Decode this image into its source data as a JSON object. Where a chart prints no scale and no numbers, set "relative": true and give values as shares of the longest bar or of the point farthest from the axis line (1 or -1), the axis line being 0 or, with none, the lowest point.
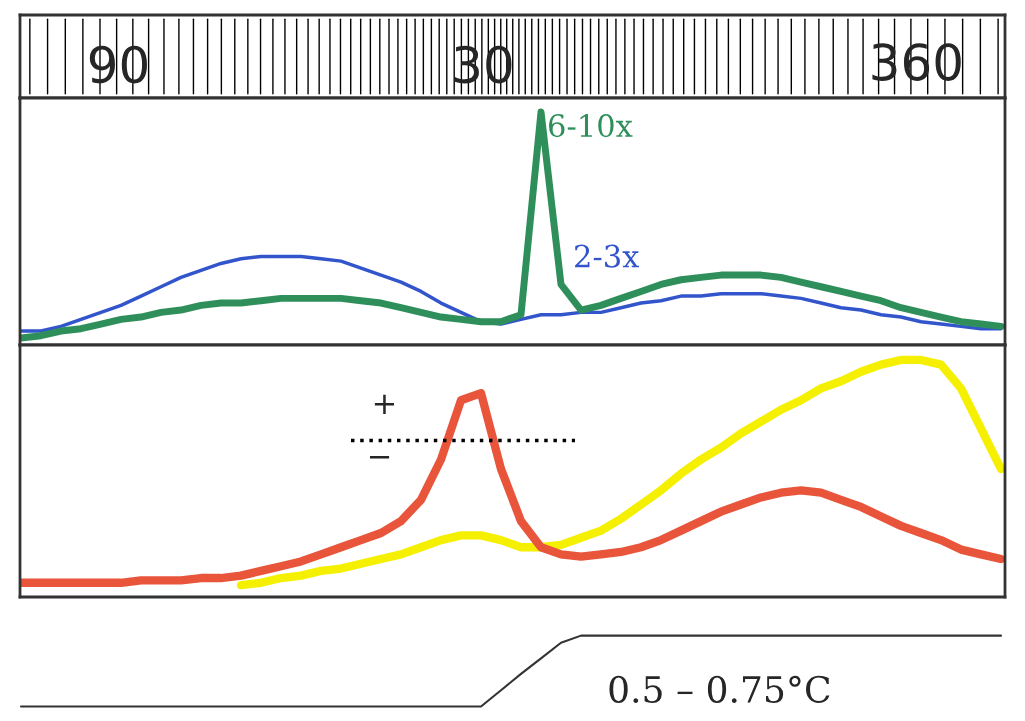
{
  "chart_data": [
    {
      "type": "other",
      "annotations": [
        "90",
        "30",
        "360"
      ]
    },
    {
      "type": "line",
      "relative": true,
      "categories": [
        null,
        null,
        null,
        null,
        null,
        null,
        null,
        null,
        null,
        null,
        null,
        null,
        null,
        null,
        null,
        null,
        null,
        null,
        null,
        null,
        null,
        null,
        null,
        null,
        null,
        null,
        null,
        null,
        null,
        null,
        null,
        null,
        null,
        null,
        null,
        null,
        null,
        null,
        null,
        null,
        null,
        null,
        null,
        null,
        null,
        null,
        null,
        null,
        null,
        null
      ],
      "series": [
        {
          "name": "2-3x",
          "color": "#3355cc",
          "values": [
            0.06,
            0.06,
            0.08,
            0.11,
            0.14,
            0.17,
            0.21,
            0.25,
            0.29,
            0.32,
            0.35,
            0.37,
            0.38,
            0.38,
            0.38,
            0.37,
            0.36,
            0.33,
            0.3,
            0.27,
            0.23,
            0.18,
            0.14,
            0.1,
            0.09,
            0.11,
            0.13,
            0.13,
            0.14,
            0.14,
            0.16,
            0.18,
            0.19,
            0.21,
            0.21,
            0.22,
            0.22,
            0.22,
            0.21,
            0.2,
            0.18,
            0.16,
            0.15,
            0.13,
            0.12,
            0.1,
            0.09,
            0.08,
            0.07,
            0.07
          ]
        },
        {
          "name": "6-10x",
          "color": "#2f8f5b",
          "values": [
            0.03,
            0.04,
            0.06,
            0.07,
            0.09,
            0.11,
            0.12,
            0.14,
            0.15,
            0.17,
            0.18,
            0.18,
            0.19,
            0.2,
            0.2,
            0.2,
            0.2,
            0.19,
            0.18,
            0.16,
            0.14,
            0.12,
            0.11,
            0.1,
            0.1,
            0.13,
            1.0,
            0.26,
            0.15,
            0.17,
            0.2,
            0.23,
            0.26,
            0.28,
            0.29,
            0.3,
            0.3,
            0.3,
            0.29,
            0.27,
            0.25,
            0.23,
            0.21,
            0.19,
            0.16,
            0.14,
            0.12,
            0.1,
            0.09,
            0.08
          ]
        }
      ]
    },
    {
      "type": "line",
      "relative": true,
      "categories": [
        null,
        null,
        null,
        null,
        null,
        null,
        null,
        null,
        null,
        null,
        null,
        null,
        null,
        null,
        null,
        null,
        null,
        null,
        null,
        null,
        null,
        null,
        null,
        null,
        null,
        null,
        null,
        null,
        null,
        null,
        null,
        null,
        null,
        null,
        null,
        null,
        null,
        null,
        null,
        null,
        null,
        null,
        null,
        null,
        null,
        null,
        null,
        null,
        null,
        null
      ],
      "ref_lines": [
        {
          "axis": "y",
          "value": 0.66,
          "color": "#000000",
          "line_style": "dotted"
        }
      ],
      "annotations": [
        "+",
        "−"
      ],
      "series": [
        {
          "color": "#f5ef00",
          "values": [
            null,
            null,
            null,
            null,
            null,
            null,
            null,
            null,
            null,
            null,
            null,
            0.05,
            0.06,
            0.08,
            0.09,
            0.11,
            0.12,
            0.14,
            0.16,
            0.18,
            0.21,
            0.24,
            0.26,
            0.26,
            0.24,
            0.21,
            0.21,
            0.22,
            0.25,
            0.28,
            0.33,
            0.39,
            0.45,
            0.52,
            0.58,
            0.63,
            0.69,
            0.74,
            0.79,
            0.83,
            0.88,
            0.91,
            0.95,
            0.98,
            1.0,
            1.0,
            0.98,
            0.88,
            0.71,
            0.54
          ]
        },
        {
          "color": "#e8553a",
          "values": [
            0.06,
            0.06,
            0.06,
            0.06,
            0.06,
            0.06,
            0.07,
            0.07,
            0.07,
            0.08,
            0.08,
            0.09,
            0.11,
            0.13,
            0.15,
            0.18,
            0.21,
            0.24,
            0.27,
            0.32,
            0.41,
            0.58,
            0.83,
            0.86,
            0.54,
            0.32,
            0.21,
            0.18,
            0.17,
            0.18,
            0.19,
            0.21,
            0.24,
            0.28,
            0.32,
            0.36,
            0.39,
            0.42,
            0.44,
            0.45,
            0.44,
            0.41,
            0.38,
            0.34,
            0.3,
            0.27,
            0.24,
            0.2,
            0.18,
            0.16
          ]
        }
      ]
    },
    {
      "type": "line",
      "relative": true,
      "categories": [
        null,
        null,
        null,
        null,
        null,
        null,
        null,
        null,
        null,
        null,
        null,
        null,
        null,
        null,
        null,
        null,
        null,
        null,
        null,
        null,
        null,
        null,
        null,
        null,
        null,
        null,
        null,
        null,
        null,
        null,
        null,
        null,
        null,
        null,
        null,
        null,
        null,
        null,
        null,
        null,
        null,
        null,
        null,
        null,
        null,
        null,
        null,
        null,
        null,
        null
      ],
      "annotations": [
        "0.5 – 0.75°C"
      ],
      "series": [
        {
          "color": "#333333",
          "values": [
            0,
            0,
            0,
            0,
            0,
            0,
            0,
            0,
            0,
            0,
            0,
            0,
            0,
            0,
            0,
            0,
            0,
            0,
            0,
            0,
            0,
            0,
            0,
            0,
            0.23,
            0.46,
            0.68,
            0.9,
            1,
            1,
            1,
            1,
            1,
            1,
            1,
            1,
            1,
            1,
            1,
            1,
            1,
            1,
            1,
            1,
            1,
            1,
            1,
            1,
            1,
            1
          ]
        }
      ]
    }
  ]
}
